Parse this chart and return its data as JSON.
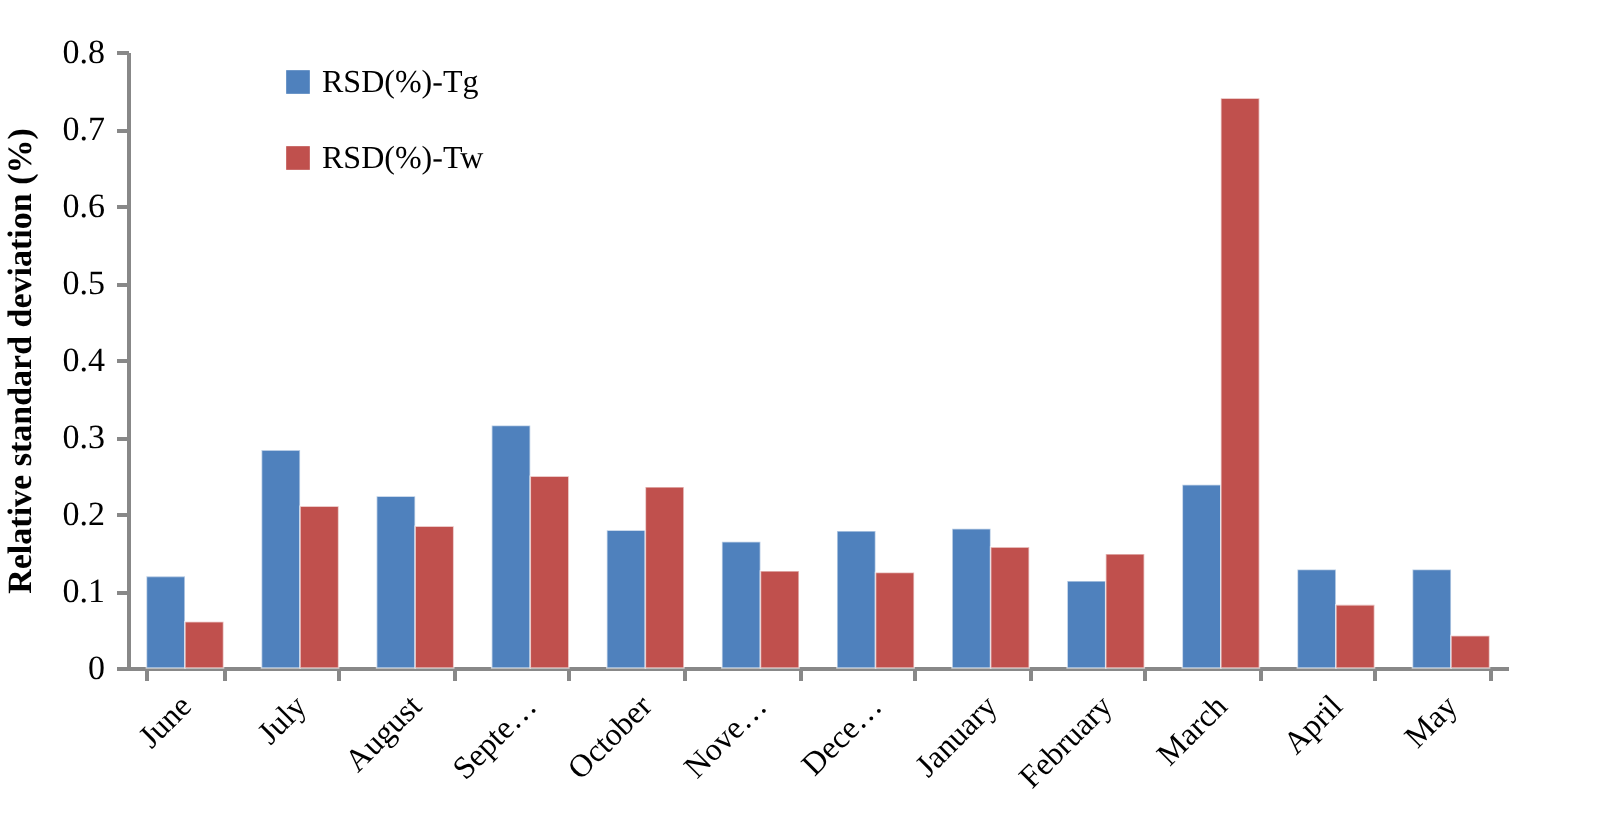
{
  "chart_data": {
    "type": "bar",
    "ylabel": "Relative standard deviation (%)",
    "categories": [
      "June",
      "July",
      "August",
      "Septe…",
      "October",
      "Nove…",
      "Dece…",
      "January",
      "February",
      "March",
      "April",
      "May"
    ],
    "series": [
      {
        "name": "RSD(%)-Tg",
        "color": "#4f81bd",
        "values": [
          0.119,
          0.283,
          0.223,
          0.315,
          0.179,
          0.164,
          0.178,
          0.181,
          0.113,
          0.238,
          0.128,
          0.128
        ]
      },
      {
        "name": "RSD(%)-Tw",
        "color": "#c0504d",
        "values": [
          0.06,
          0.21,
          0.184,
          0.249,
          0.235,
          0.126,
          0.124,
          0.157,
          0.148,
          0.74,
          0.082,
          0.042
        ]
      }
    ],
    "ylim": [
      0,
      0.8
    ],
    "yticks": [
      0,
      0.1,
      0.2,
      0.3,
      0.4,
      0.5,
      0.6,
      0.7,
      0.8
    ],
    "grid": false,
    "legend": "top left"
  }
}
